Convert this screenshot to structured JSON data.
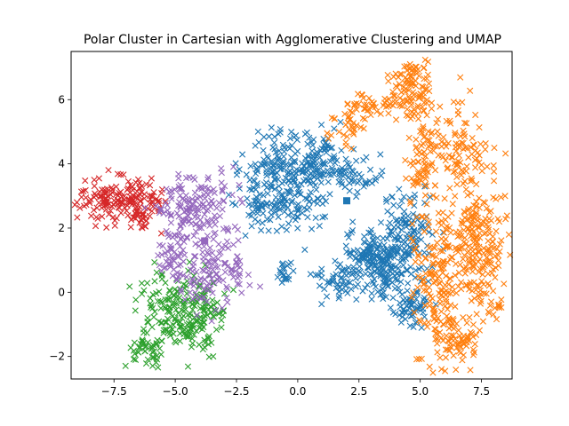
{
  "chart_data": {
    "type": "scatter",
    "title": "Polar Cluster in Cartesian with Agglomerative Clustering and UMAP",
    "xlabel": "",
    "ylabel": "",
    "xlim": [
      -9.25,
      8.75
    ],
    "ylim": [
      -2.7,
      7.5
    ],
    "grid": false,
    "legend": "none",
    "x_ticks": [
      -7.5,
      -5.0,
      -2.5,
      0.0,
      2.5,
      5.0,
      7.5
    ],
    "x_tick_labels": [
      "−7.5",
      "−5.0",
      "−2.5",
      "0.0",
      "2.5",
      "5.0",
      "7.5"
    ],
    "y_ticks": [
      -2,
      0,
      2,
      4,
      6
    ],
    "y_tick_labels": [
      "−2",
      "0",
      "2",
      "4",
      "6"
    ],
    "marker": "x",
    "centroid_marker": "square",
    "series": [
      {
        "color": "#1f77b4",
        "regions": [
          {
            "cx": -0.6,
            "cy": 3.3,
            "sx": 0.85,
            "sy": 0.75,
            "n": 260
          },
          {
            "cx": 0.8,
            "cy": 4.0,
            "sx": 0.45,
            "sy": 0.55,
            "n": 90
          },
          {
            "cx": 2.3,
            "cy": 3.7,
            "sx": 0.5,
            "sy": 0.3,
            "n": 50
          },
          {
            "cx": 3.2,
            "cy": 0.9,
            "sx": 0.8,
            "sy": 0.5,
            "n": 230
          },
          {
            "cx": 4.5,
            "cy": 1.8,
            "sx": 0.5,
            "sy": 0.7,
            "n": 120
          },
          {
            "cx": 4.6,
            "cy": -0.5,
            "sx": 0.4,
            "sy": 0.3,
            "n": 60
          },
          {
            "cx": 1.5,
            "cy": 0.3,
            "sx": 0.4,
            "sy": 0.3,
            "n": 40
          },
          {
            "cx": -0.6,
            "cy": 0.6,
            "sx": 0.2,
            "sy": 0.2,
            "n": 20
          }
        ],
        "centroid": [
          2.0,
          2.85
        ]
      },
      {
        "color": "#ff7f0e",
        "regions": [
          {
            "cx": 4.6,
            "cy": 6.4,
            "sx": 0.35,
            "sy": 0.4,
            "n": 80
          },
          {
            "cx": 3.2,
            "cy": 5.8,
            "sx": 0.7,
            "sy": 0.2,
            "n": 50
          },
          {
            "cx": 1.9,
            "cy": 5.2,
            "sx": 0.35,
            "sy": 0.3,
            "n": 30
          },
          {
            "cx": 5.0,
            "cy": 4.5,
            "sx": 0.3,
            "sy": 1.2,
            "n": 100
          },
          {
            "cx": 6.6,
            "cy": 4.6,
            "sx": 0.5,
            "sy": 0.7,
            "n": 90
          },
          {
            "cx": 7.4,
            "cy": 1.5,
            "sx": 0.55,
            "sy": 1.3,
            "n": 230
          },
          {
            "cx": 5.8,
            "cy": 0.3,
            "sx": 0.55,
            "sy": 1.2,
            "n": 170
          },
          {
            "cx": 6.5,
            "cy": -1.5,
            "sx": 0.4,
            "sy": 0.4,
            "n": 60
          }
        ],
        "centroid": null
      },
      {
        "color": "#2ca02c",
        "regions": [
          {
            "cx": -5.2,
            "cy": -0.4,
            "sx": 0.65,
            "sy": 0.5,
            "n": 110
          },
          {
            "cx": -4.0,
            "cy": -0.8,
            "sx": 0.6,
            "sy": 0.6,
            "n": 110
          },
          {
            "cx": -6.1,
            "cy": -1.7,
            "sx": 0.4,
            "sy": 0.3,
            "n": 50
          }
        ],
        "centroid": null
      },
      {
        "color": "#d62728",
        "regions": [
          {
            "cx": -7.8,
            "cy": 2.9,
            "sx": 0.55,
            "sy": 0.35,
            "n": 100
          },
          {
            "cx": -6.4,
            "cy": 2.7,
            "sx": 0.45,
            "sy": 0.4,
            "n": 90
          }
        ],
        "centroid": null
      },
      {
        "color": "#9467bd",
        "regions": [
          {
            "cx": -4.0,
            "cy": 2.6,
            "sx": 0.8,
            "sy": 0.5,
            "n": 150
          },
          {
            "cx": -3.5,
            "cy": 0.6,
            "sx": 0.75,
            "sy": 0.5,
            "n": 120
          },
          {
            "cx": -5.0,
            "cy": 1.2,
            "sx": 0.4,
            "sy": 0.6,
            "n": 50
          }
        ],
        "centroid": [
          -3.8,
          1.6
        ]
      }
    ]
  }
}
